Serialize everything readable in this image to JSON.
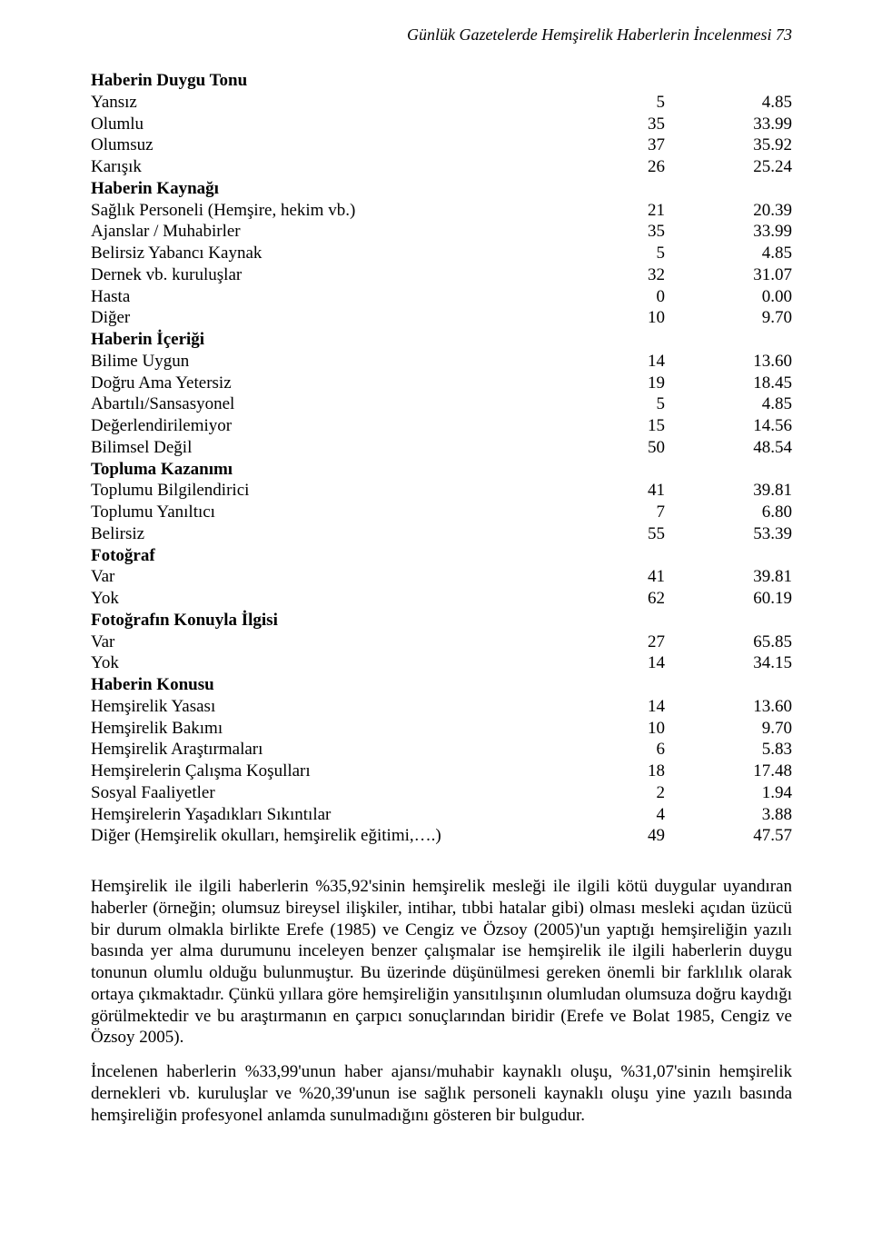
{
  "running_header": "Günlük Gazetelerde Hemşirelik Haberlerin İncelenmesi 73",
  "table": {
    "sections": [
      {
        "title": "Haberin Duygu Tonu",
        "rows": [
          {
            "label": "Yansız",
            "n": "5",
            "pct": "4.85"
          },
          {
            "label": "Olumlu",
            "n": "35",
            "pct": "33.99"
          },
          {
            "label": "Olumsuz",
            "n": "37",
            "pct": "35.92"
          },
          {
            "label": "Karışık",
            "n": "26",
            "pct": "25.24"
          }
        ]
      },
      {
        "title": "Haberin Kaynağı",
        "rows": [
          {
            "label": "Sağlık Personeli (Hemşire, hekim vb.)",
            "n": "21",
            "pct": "20.39"
          },
          {
            "label": "Ajanslar / Muhabirler",
            "n": "35",
            "pct": "33.99"
          },
          {
            "label": "Belirsiz Yabancı Kaynak",
            "n": "5",
            "pct": "4.85"
          },
          {
            "label": "Dernek vb. kuruluşlar",
            "n": "32",
            "pct": "31.07"
          },
          {
            "label": "Hasta",
            "n": "0",
            "pct": "0.00"
          },
          {
            "label": "Diğer",
            "n": "10",
            "pct": "9.70"
          }
        ]
      },
      {
        "title": "Haberin İçeriği",
        "rows": [
          {
            "label": "Bilime Uygun",
            "n": "14",
            "pct": "13.60"
          },
          {
            "label": "Doğru Ama Yetersiz",
            "n": "19",
            "pct": "18.45"
          },
          {
            "label": "Abartılı/Sansasyonel",
            "n": "5",
            "pct": "4.85"
          },
          {
            "label": "Değerlendirilemiyor",
            "n": "15",
            "pct": "14.56"
          },
          {
            "label": "Bilimsel Değil",
            "n": "50",
            "pct": "48.54"
          }
        ]
      },
      {
        "title": "Topluma Kazanımı",
        "rows": [
          {
            "label": "Toplumu Bilgilendirici",
            "n": "41",
            "pct": "39.81"
          },
          {
            "label": "Toplumu Yanıltıcı",
            "n": "7",
            "pct": "6.80"
          },
          {
            "label": "Belirsiz",
            "n": "55",
            "pct": "53.39"
          }
        ]
      },
      {
        "title": "Fotoğraf",
        "rows": [
          {
            "label": "Var",
            "n": "41",
            "pct": "39.81"
          },
          {
            "label": "Yok",
            "n": "62",
            "pct": "60.19"
          }
        ]
      },
      {
        "title": "Fotoğrafın Konuyla İlgisi",
        "rows": [
          {
            "label": "Var",
            "n": "27",
            "pct": "65.85"
          },
          {
            "label": "Yok",
            "n": "14",
            "pct": "34.15"
          }
        ]
      },
      {
        "title": "Haberin Konusu",
        "rows": [
          {
            "label": "Hemşirelik Yasası",
            "n": "14",
            "pct": "13.60"
          },
          {
            "label": "Hemşirelik Bakımı",
            "n": "10",
            "pct": "9.70"
          },
          {
            "label": "Hemşirelik Araştırmaları",
            "n": "6",
            "pct": "5.83"
          },
          {
            "label": "Hemşirelerin Çalışma Koşulları",
            "n": "18",
            "pct": "17.48"
          },
          {
            "label": "Sosyal Faaliyetler",
            "n": "2",
            "pct": "1.94"
          },
          {
            "label": "Hemşirelerin Yaşadıkları Sıkıntılar",
            "n": "4",
            "pct": "3.88"
          },
          {
            "label": "Diğer (Hemşirelik okulları, hemşirelik eğitimi,….)",
            "n": "49",
            "pct": "47.57"
          }
        ]
      }
    ]
  },
  "paragraphs": [
    "Hemşirelik ile ilgili haberlerin %35,92'sinin hemşirelik mesleği ile ilgili kötü duygular uyandıran haberler (örneğin; olumsuz bireysel ilişkiler, intihar, tıbbi hatalar gibi) olması mesleki açıdan üzücü bir durum olmakla birlikte Erefe (1985) ve Cengiz ve Özsoy (2005)'un yaptığı hemşireliğin yazılı basında yer alma durumunu inceleyen benzer çalışmalar ise hemşirelik ile ilgili haberlerin duygu tonunun olumlu olduğu bulunmuştur. Bu üzerinde düşünülmesi gereken önemli bir farklılık olarak ortaya çıkmaktadır. Çünkü yıllara göre hemşireliğin yansıtılışının olumludan olumsuza doğru kaydığı görülmektedir ve bu araştırmanın en çarpıcı sonuçlarından biridir (Erefe ve Bolat 1985, Cengiz ve Özsoy 2005).",
    "İncelenen haberlerin %33,99'unun haber ajansı/muhabir kaynaklı oluşu, %31,07'sinin hemşirelik dernekleri vb. kuruluşlar ve %20,39'unun ise sağlık personeli kaynaklı oluşu yine yazılı basında hemşireliğin profesyonel anlamda sunulmadığını gösteren bir bulgudur."
  ]
}
